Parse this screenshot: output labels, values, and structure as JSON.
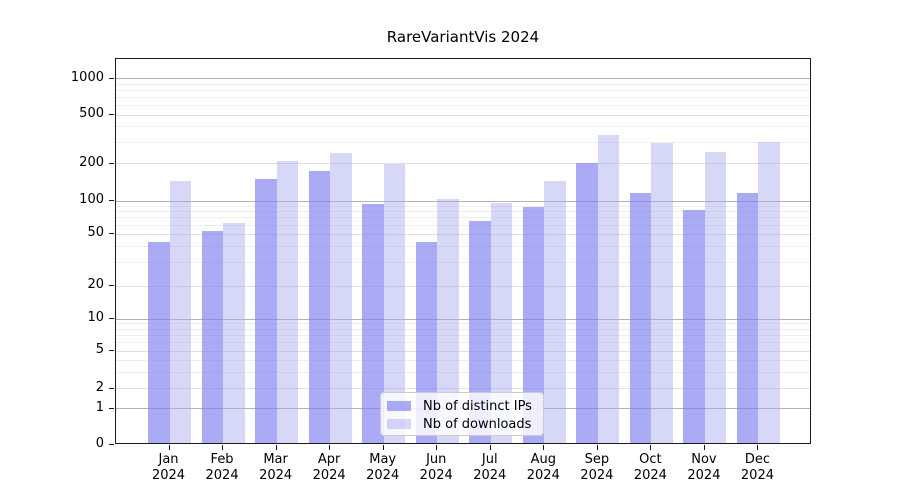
{
  "chart_data": {
    "type": "bar",
    "title": "RareVariantVis 2024",
    "categories": [
      "Jan",
      "Feb",
      "Mar",
      "Apr",
      "May",
      "Jun",
      "Jul",
      "Aug",
      "Sep",
      "Oct",
      "Nov",
      "Dec"
    ],
    "year_label": "2024",
    "series": [
      {
        "name": "Nb of distinct IPs",
        "color": "rgba(127,127,240,0.66)",
        "values": [
          42,
          51,
          145,
          170,
          91,
          42,
          63,
          84,
          196,
          112,
          80,
          112
        ]
      },
      {
        "name": "Nb of downloads",
        "color": "rgba(165,165,237,0.44)",
        "values": [
          139,
          61,
          203,
          236,
          193,
          100,
          92,
          140,
          332,
          285,
          240,
          290
        ]
      }
    ],
    "yticks": [
      0,
      1,
      2,
      5,
      10,
      20,
      50,
      100,
      200,
      500,
      1000
    ],
    "yscale": "symlog",
    "ylim": [
      0,
      1400
    ],
    "xlabel": "",
    "ylabel": "",
    "grid": "horizontal-only",
    "legend_position": "lower-center"
  },
  "colors": {
    "background": "#ffffff",
    "spine": "#1a1a1a",
    "grid_major": "#b3b3b3",
    "grid_minor": "#eeeeee",
    "text": "#000000",
    "bar_ips_on_white": "#aaaaf5",
    "bar_downloads_on_white": "#d8d8f7"
  }
}
